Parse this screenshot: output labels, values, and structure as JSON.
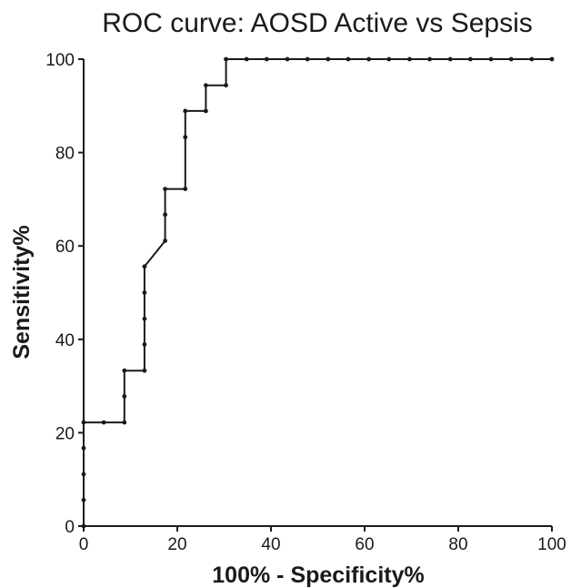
{
  "chart_data": {
    "type": "line",
    "title": "ROC curve: AOSD Active vs Sepsis",
    "xlabel": "100% - Specificity%",
    "ylabel": "Sensitivity%",
    "xlim": [
      0,
      100
    ],
    "ylim": [
      0,
      100
    ],
    "x_ticks": [
      "0",
      "20",
      "40",
      "60",
      "80",
      "100"
    ],
    "y_ticks": [
      "0",
      "20",
      "40",
      "60",
      "80",
      "100"
    ],
    "grid": false,
    "legend": "none",
    "line_color": "#1a1a1a",
    "series": [
      {
        "points": [
          [
            0,
            0
          ],
          [
            0,
            5.6
          ],
          [
            0,
            11.1
          ],
          [
            0,
            16.7
          ],
          [
            0,
            22.2
          ],
          [
            4.3,
            22.2
          ],
          [
            8.7,
            22.2
          ],
          [
            8.7,
            27.8
          ],
          [
            8.7,
            33.3
          ],
          [
            13.0,
            33.3
          ],
          [
            13.0,
            38.9
          ],
          [
            13.0,
            44.4
          ],
          [
            13.0,
            50.0
          ],
          [
            13.0,
            55.6
          ],
          [
            17.4,
            61.1
          ],
          [
            17.4,
            66.7
          ],
          [
            17.4,
            72.2
          ],
          [
            21.7,
            72.2
          ],
          [
            21.7,
            83.3
          ],
          [
            21.7,
            88.9
          ],
          [
            26.1,
            88.9
          ],
          [
            26.1,
            94.4
          ],
          [
            30.4,
            94.4
          ],
          [
            30.4,
            100
          ],
          [
            34.8,
            100
          ],
          [
            39.1,
            100
          ],
          [
            43.5,
            100
          ],
          [
            47.8,
            100
          ],
          [
            52.2,
            100
          ],
          [
            56.5,
            100
          ],
          [
            60.9,
            100
          ],
          [
            65.2,
            100
          ],
          [
            69.6,
            100
          ],
          [
            73.9,
            100
          ],
          [
            78.3,
            100
          ],
          [
            82.6,
            100
          ],
          [
            87.0,
            100
          ],
          [
            91.3,
            100
          ],
          [
            95.7,
            100
          ],
          [
            100,
            100
          ]
        ]
      }
    ]
  }
}
